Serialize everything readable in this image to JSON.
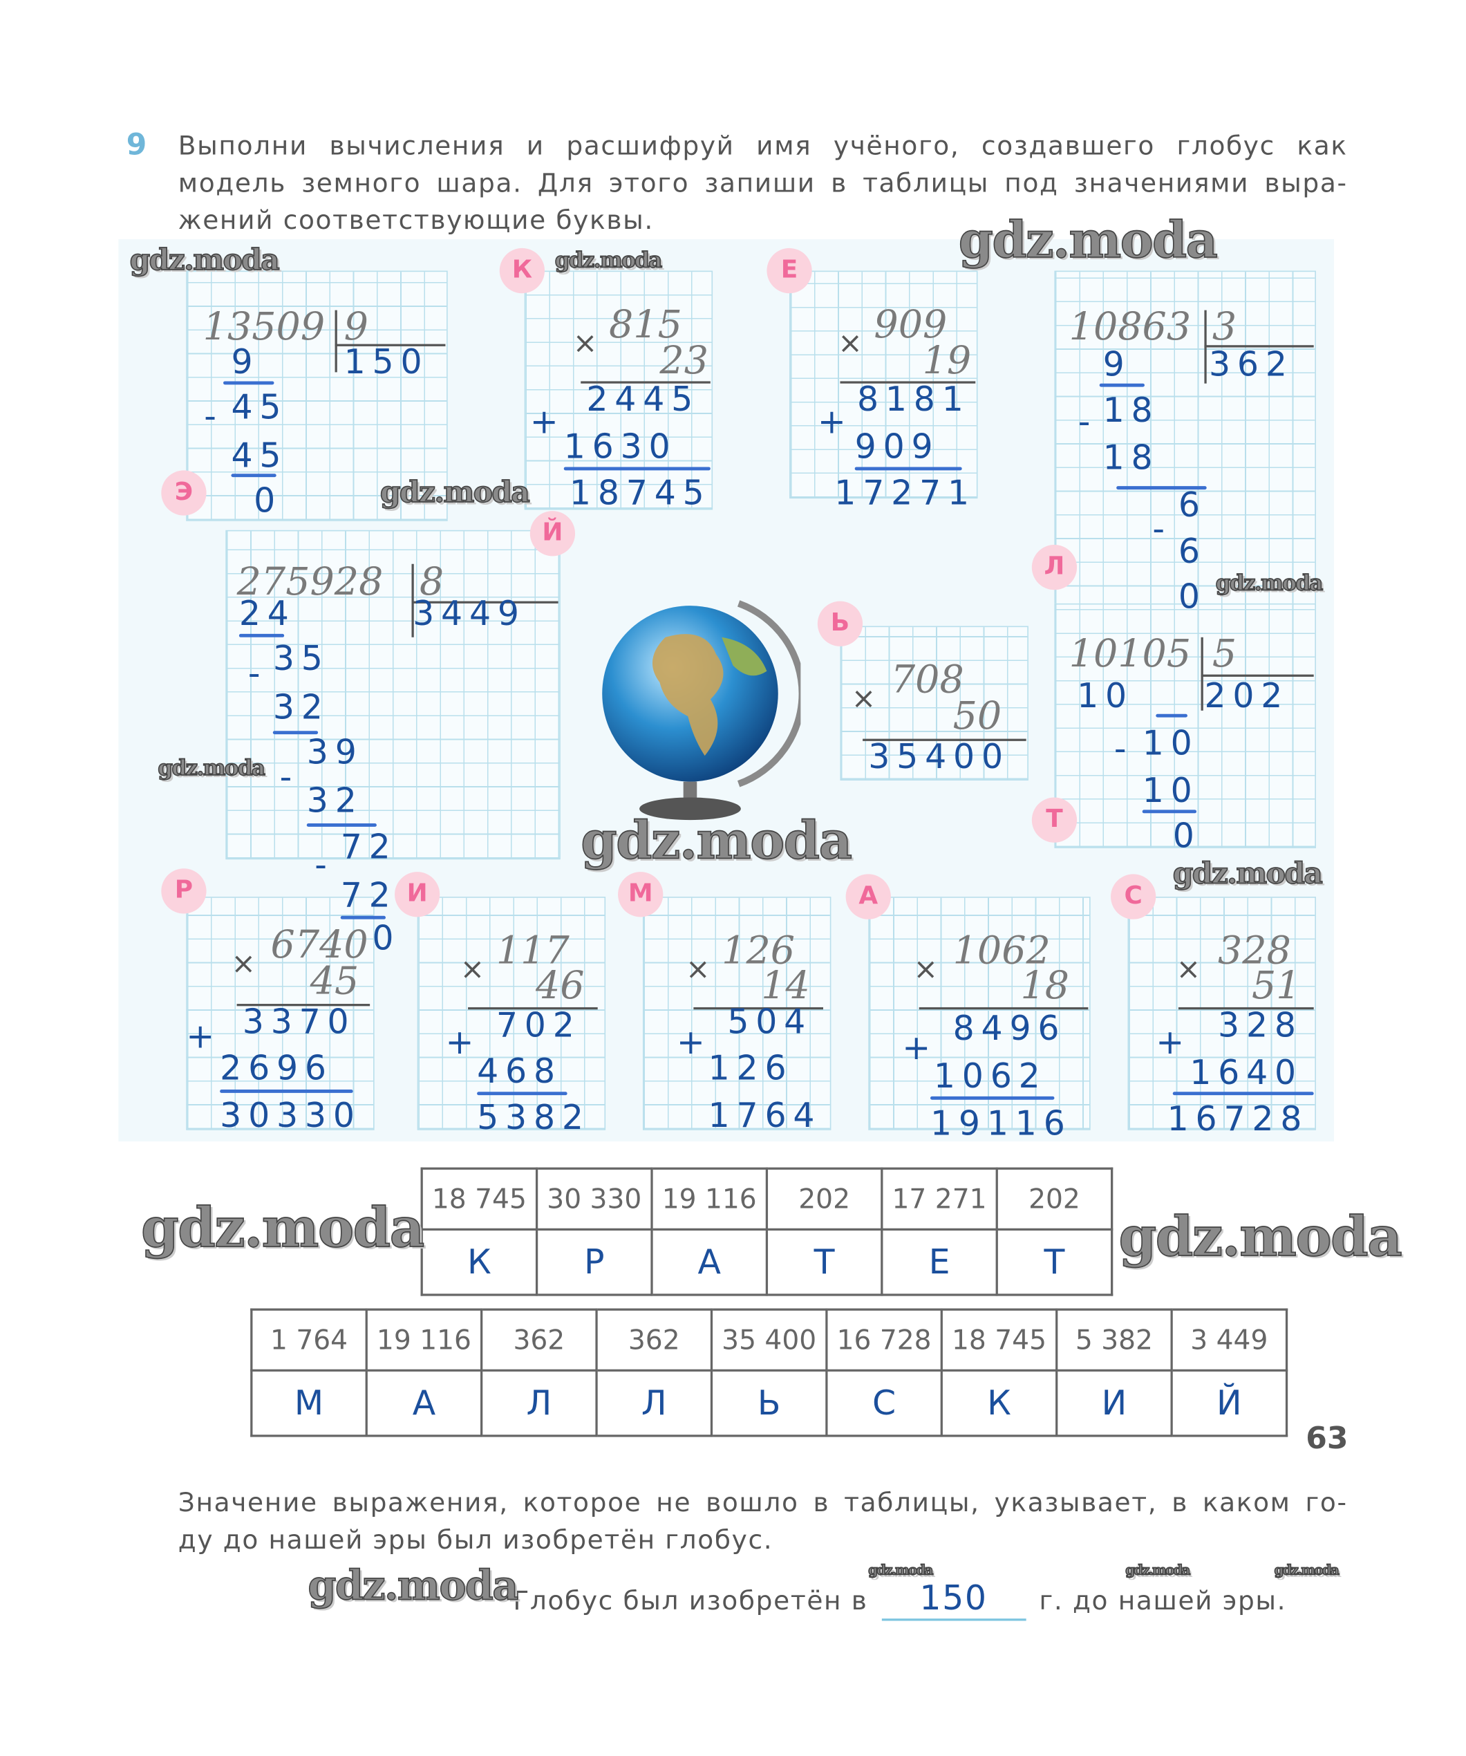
{
  "exercise": {
    "number": "9",
    "instruction_lines": [
      "Выполни вычисления и расшифруй имя учёного, создавшего глобус как",
      "модель земного шара. Для этого запиши в таблицы под значениями выра-",
      "жений соответствующие буквы."
    ]
  },
  "computations": [
    {
      "letter": "Э",
      "operation": "division",
      "rows": [
        "13509",
        "9",
        "150",
        "9",
        "-",
        "45",
        "45",
        "0"
      ]
    },
    {
      "letter": "К",
      "operation": "multiplication",
      "rows": [
        "×",
        "815",
        "23",
        "2445",
        "+",
        "1630",
        "18745"
      ]
    },
    {
      "letter": "Е",
      "operation": "multiplication",
      "rows": [
        "×",
        "909",
        "19",
        "8181",
        "+",
        "909",
        "17271"
      ]
    },
    {
      "letter": "Л",
      "operation": "division",
      "rows": [
        "10863",
        "3",
        "362",
        "9",
        "-",
        "18",
        "18",
        "-",
        "6",
        "6",
        "0"
      ]
    },
    {
      "letter": "Й",
      "operation": "division",
      "rows": [
        "275928",
        "8",
        "3449",
        "24",
        "-",
        "35",
        "32",
        "-",
        "39",
        "32",
        "-",
        "72",
        "72",
        "0"
      ]
    },
    {
      "letter": "Ь",
      "operation": "multiplication",
      "rows": [
        "×",
        "708",
        "50",
        "35400"
      ]
    },
    {
      "letter": "Т",
      "operation": "division",
      "rows": [
        "10105",
        "5",
        "202",
        "10",
        "-",
        "10",
        "10",
        "0"
      ]
    },
    {
      "letter": "Р",
      "operation": "multiplication",
      "rows": [
        "×",
        "6740",
        "45",
        "3370",
        "+",
        "2696",
        "30330"
      ]
    },
    {
      "letter": "И",
      "operation": "multiplication",
      "rows": [
        "×",
        "117",
        "46",
        "702",
        "+",
        "468",
        "5382"
      ]
    },
    {
      "letter": "М",
      "operation": "multiplication",
      "rows": [
        "×",
        "126",
        "14",
        "504",
        "+",
        "126",
        "1764"
      ]
    },
    {
      "letter": "А",
      "operation": "multiplication",
      "rows": [
        "×",
        "1062",
        "18",
        "8496",
        "+",
        "1062",
        "19116"
      ]
    },
    {
      "letter": "С",
      "operation": "multiplication",
      "rows": [
        "×",
        "328",
        "51",
        "328",
        "+",
        "1640",
        "16728"
      ]
    }
  ],
  "tables": [
    {
      "values": [
        "18 745",
        "30 330",
        "19 116",
        "202",
        "17 271",
        "202"
      ],
      "letters": [
        "К",
        "Р",
        "А",
        "Т",
        "Е",
        "Т"
      ]
    },
    {
      "values": [
        "1 764",
        "19 116",
        "362",
        "362",
        "35 400",
        "16 728",
        "18 745",
        "5 382",
        "3 449"
      ],
      "letters": [
        "М",
        "А",
        "Л",
        "Л",
        "Ь",
        "С",
        "К",
        "И",
        "Й"
      ]
    }
  ],
  "illustration": {
    "icon": "globe-icon"
  },
  "page_number": "63",
  "conclusion": {
    "lines": [
      "Значение выражения, которое не вошло в таблицы, указывает, в каком го-",
      "ду до нашей эры был изобретён глобус."
    ],
    "answer_prefix": "Глобус был изобретён в",
    "answer_value": "150",
    "answer_suffix": "г. до нашей эры."
  },
  "watermarks": [
    "gdz.moda",
    "gdz.moda",
    "gdz.moda",
    "gdz.moda",
    "gdz.moda",
    "gdz.moda",
    "gdz.moda",
    "gdz.moda",
    "gdz.moda",
    "gdz.moda",
    "gdz.moda",
    "gdz.moda",
    "gdz.moda",
    "gdz.moda"
  ],
  "colors": {
    "answer_ink": "#1b4f9c",
    "letter_badge": "#f0699a",
    "grid": "#b9dfec"
  }
}
